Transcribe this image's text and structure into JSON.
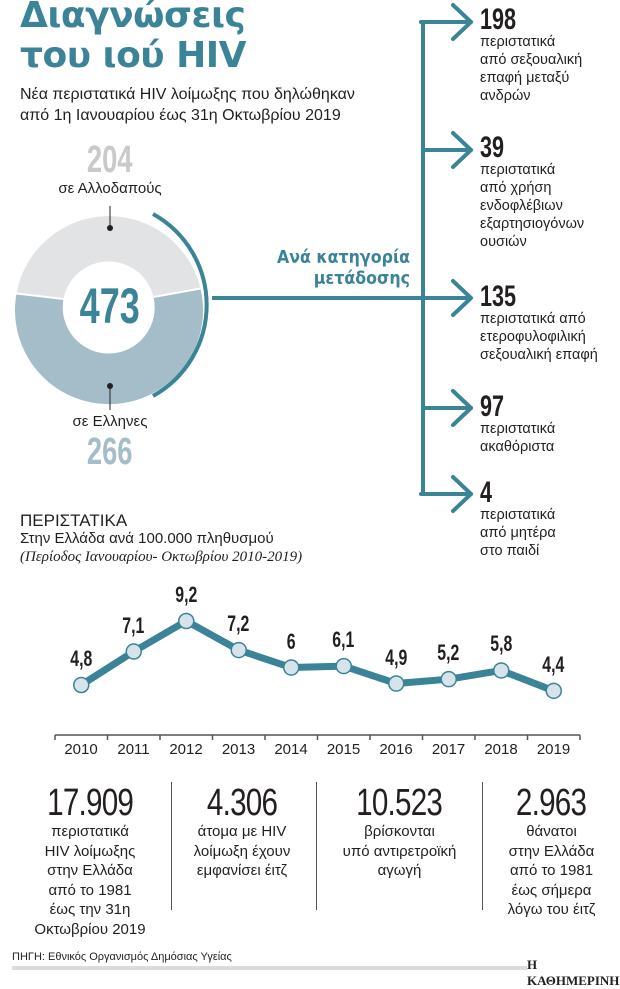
{
  "header": {
    "title_line1": "Διαγνώσεις",
    "title_line2": "του ιού HIV",
    "subtitle_line1": "Νέα περιστατικά HIV λοίμωξης που δηλώθηκαν",
    "subtitle_line2": "από 1η Ιανουαρίου έως 31η Οκτωβρίου 2019"
  },
  "donut": {
    "total": "473",
    "foreign": {
      "value": "204",
      "label": "σε Αλλοδαπούς",
      "color": "#e2e3e5"
    },
    "greek": {
      "value": "266",
      "label": "σε Ελληνες",
      "color": "#a4bdc8"
    },
    "accent_color": "#3b8396",
    "category_label_line1": "Ανά κατηγορία",
    "category_label_line2": "μετάδοσης"
  },
  "branches": [
    {
      "num": "198",
      "lines": [
        "περιστατικά",
        "από σεξουαλική",
        "επαφή μεταξύ",
        "ανδρών"
      ]
    },
    {
      "num": "39",
      "lines": [
        "περιστατικά",
        "από χρήση",
        "ενδοφλέβιων",
        "εξαρτησιογόνων",
        "ουσιών"
      ]
    },
    {
      "num": "135",
      "lines": [
        "περιστατικά από",
        "ετεροφυλοφιλική",
        "σεξουαλική επαφή"
      ]
    },
    {
      "num": "97",
      "lines": [
        "περιστατικά",
        "ακαθόριστα"
      ]
    },
    {
      "num": "4",
      "lines": [
        "περιστατικά",
        "από μητέρα",
        "στο παιδί"
      ]
    }
  ],
  "chart_section": {
    "heading": "ΠΕΡΙΣΤΑΤΙΚΑ",
    "sub1": "Στην Ελλάδα ανά 100.000 πληθυσμού",
    "sub2": "(Περίοδος Ιανουαρίου- Οκτωβρίου 2010-2019)"
  },
  "chart_data": {
    "type": "line",
    "title": "ΠΕΡΙΣΤΑΤΙΚΑ",
    "subtitle": "Στην Ελλάδα ανά 100.000 πληθυσμού (Περίοδος Ιανουαρίου- Οκτωβρίου 2010-2019)",
    "xlabel": "",
    "ylabel": "Περιστατικά ανά 100.000 πληθυσμού",
    "categories": [
      "2010",
      "2011",
      "2012",
      "2013",
      "2014",
      "2015",
      "2016",
      "2017",
      "2018",
      "2019"
    ],
    "values": [
      4.8,
      7.1,
      9.2,
      7.2,
      6,
      6.1,
      4.9,
      5.2,
      5.8,
      4.4
    ],
    "value_labels": [
      "4,8",
      "7,1",
      "9,2",
      "7,2",
      "6",
      "6,1",
      "4,9",
      "5,2",
      "5,8",
      "4,4"
    ],
    "grid": false,
    "line_color": "#3b8396",
    "marker_color": "#d6e3ea"
  },
  "stats": [
    {
      "big": "17.909",
      "lines": [
        "περιστατικά",
        "HIV λοίμωξης",
        "στην Ελλάδα",
        "από το 1981",
        "έως την 31η",
        "Οκτωβρίου 2019"
      ]
    },
    {
      "big": "4.306",
      "lines": [
        "άτομα με HIV",
        "λοίμωξη έχουν",
        "εμφανίσει έιτζ"
      ]
    },
    {
      "big": "10.523",
      "lines": [
        "βρίσκονται",
        "υπό αντιρετροϊκή",
        "αγωγή"
      ]
    },
    {
      "big": "2.963",
      "lines": [
        "θάνατοι",
        "στην Ελλάδα",
        "από το 1981",
        "έως σήμερα",
        "λόγω του έιτζ"
      ]
    }
  ],
  "footer": {
    "source": "ΠΗΓΗ: Εθνικός Οργανισμός Δημόσιας Υγείας",
    "brand": "Η ΚΑΘΗΜΕΡΙΝΗ"
  }
}
